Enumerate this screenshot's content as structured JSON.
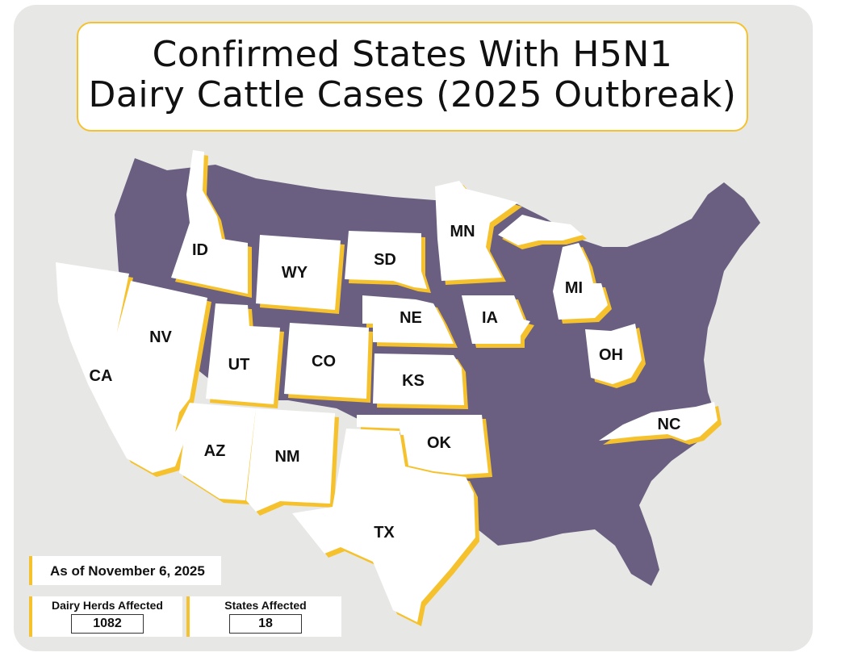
{
  "title": {
    "line1": "Confirmed States With H5N1",
    "line2": "Dairy Cattle Cases (2025 Outbreak)"
  },
  "legend": {
    "as_of": "As of November 6, 2025",
    "herds_label": "Dairy Herds Affected",
    "herds_value": "1082",
    "states_label": "States Affected",
    "states_value": "18"
  },
  "colors": {
    "unaffected": "#6a5f80",
    "affected": "#ffffff",
    "highlight": "#f5c22e",
    "background": "#e7e7e5"
  },
  "affected_states": [
    "CA",
    "NV",
    "ID",
    "UT",
    "AZ",
    "WY",
    "CO",
    "NM",
    "SD",
    "NE",
    "KS",
    "OK",
    "TX",
    "MN",
    "IA",
    "MI",
    "OH",
    "NC"
  ]
}
